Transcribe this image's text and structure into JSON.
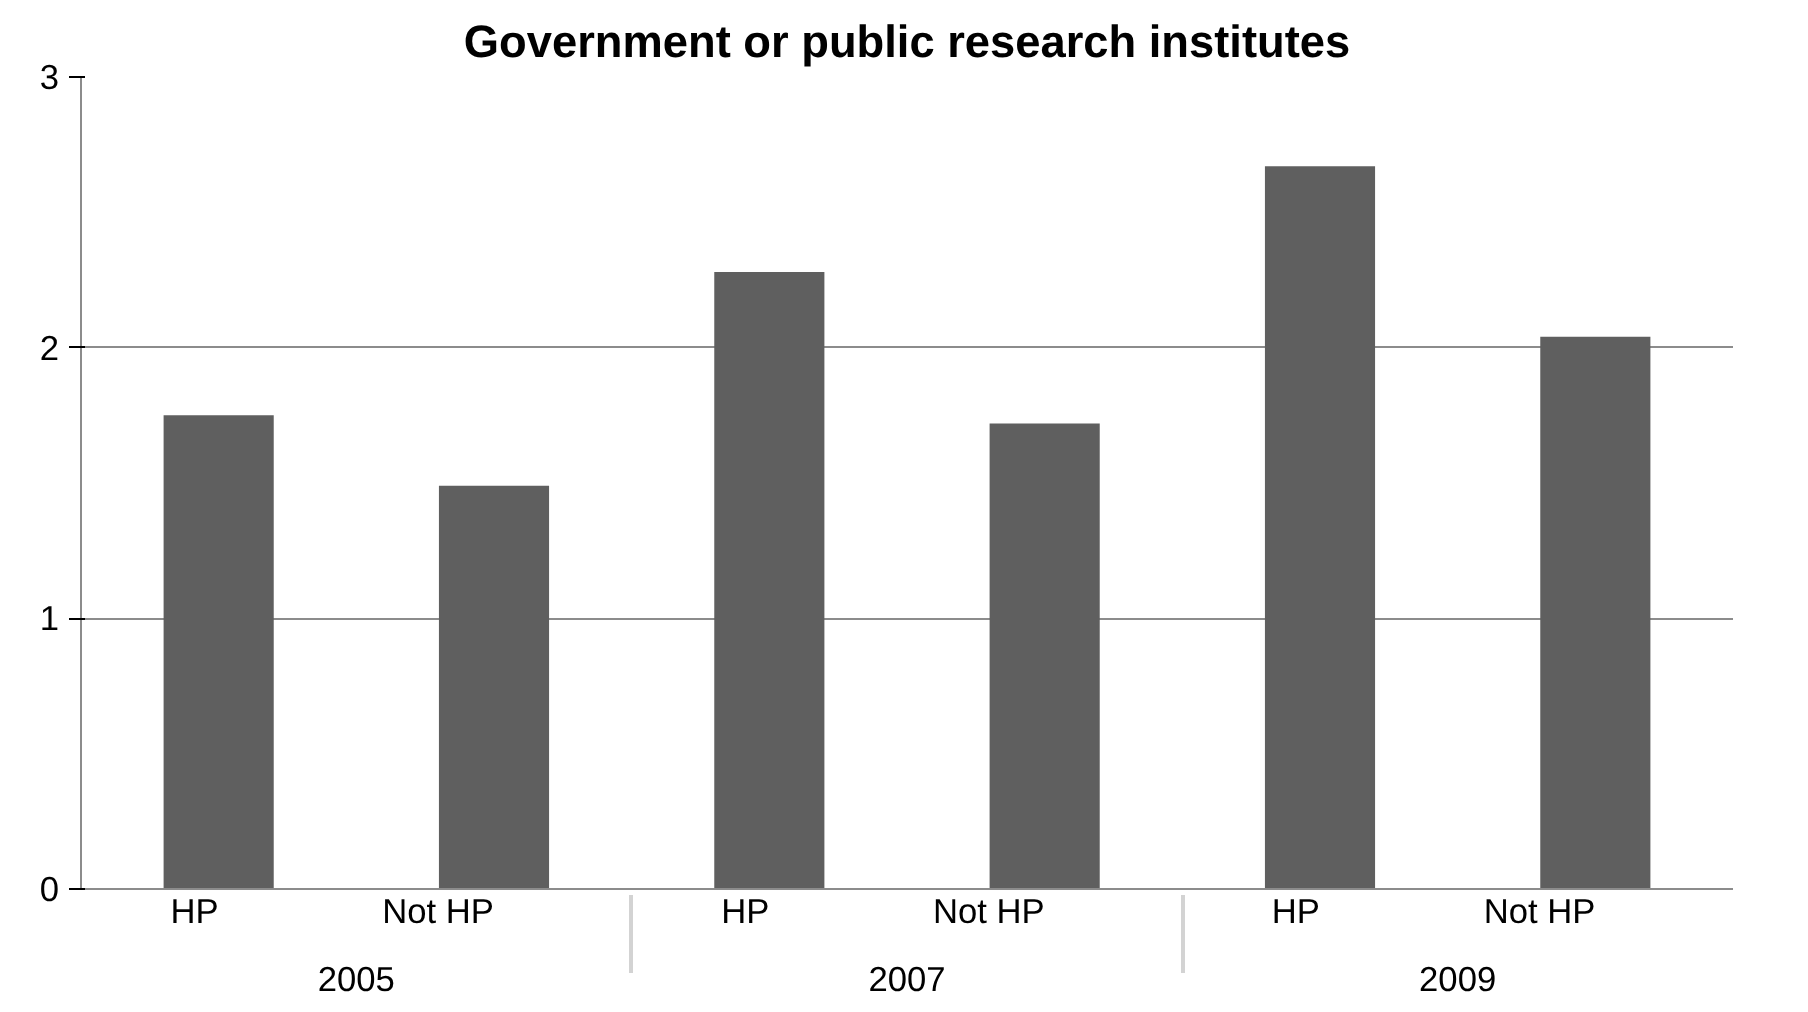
{
  "chart_data": {
    "type": "bar",
    "title": "Government or public research institutes",
    "categories": [
      "HP",
      "Not HP",
      "HP",
      "Not HP",
      "HP",
      "Not HP"
    ],
    "annotations": [
      "2005",
      "2007",
      "2009"
    ],
    "values": [
      1.75,
      1.49,
      2.28,
      1.72,
      2.67,
      2.04
    ],
    "color": "#5f5f5f",
    "ylim": [
      0,
      3
    ],
    "yticks": [
      0,
      1,
      2,
      3
    ],
    "grid": "y"
  }
}
